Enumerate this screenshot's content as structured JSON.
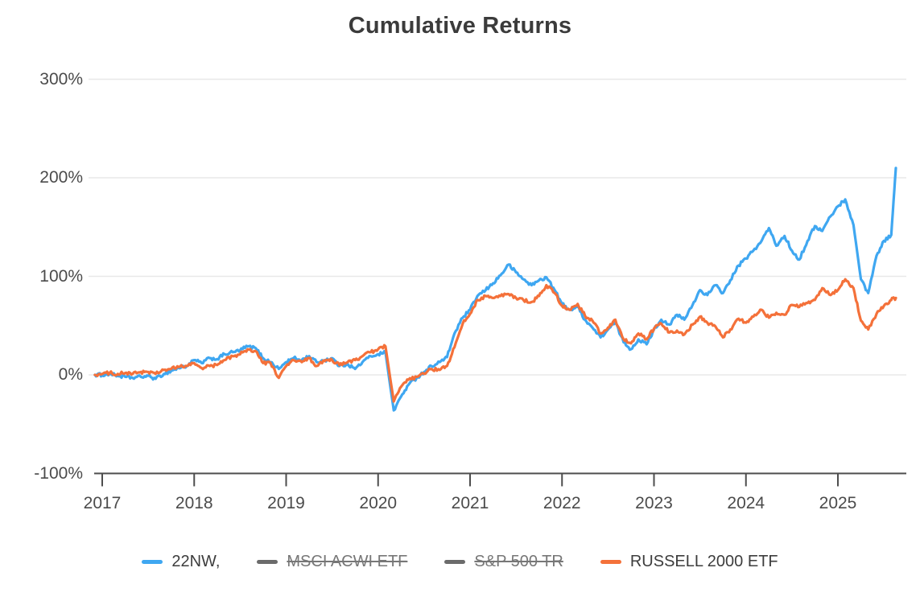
{
  "chart_data": {
    "type": "line",
    "title": "Cumulative Returns",
    "x_axis": {
      "tick_labels": [
        "2017",
        "2018",
        "2019",
        "2020",
        "2021",
        "2022",
        "2023",
        "2024",
        "2025"
      ],
      "tick_values": [
        2017,
        2018,
        2019,
        2020,
        2021,
        2022,
        2023,
        2024,
        2025
      ],
      "range": [
        2016.92,
        2025.7
      ]
    },
    "y_axis": {
      "tick_labels": [
        "300%",
        "200%",
        "100%",
        "0%",
        "-100%"
      ],
      "tick_values": [
        300,
        200,
        100,
        0,
        -100
      ],
      "range": [
        -100,
        300
      ],
      "unit": "%"
    },
    "grid": "horizontal-only",
    "legend": {
      "position": "bottom",
      "items": [
        {
          "label": "22NW,",
          "color": "#3fa7f1",
          "active": true
        },
        {
          "label": "MSCI ACWI ETF",
          "color": "#6b6b6b",
          "active": false
        },
        {
          "label": "S&P 500 TR",
          "color": "#6b6b6b",
          "active": false
        },
        {
          "label": "RUSSELL 2000 ETF",
          "color": "#f4713a",
          "active": true
        }
      ]
    },
    "colors": {
      "series_blue": "#3fa7f1",
      "series_orange": "#f4713a",
      "disabled_legend": "#6b6b6b",
      "gridline": "#e8e8e8",
      "axis": "#4d4d4d",
      "title_text": "#3b3b3b",
      "tick_text": "#4b4b4b"
    },
    "series": [
      {
        "name": "22NW,",
        "color": "#3fa7f1",
        "unit": "%",
        "points": [
          [
            2016.92,
            0
          ],
          [
            2017.0,
            0
          ],
          [
            2017.08,
            1
          ],
          [
            2017.17,
            -1
          ],
          [
            2017.25,
            -2
          ],
          [
            2017.33,
            -3
          ],
          [
            2017.42,
            -2
          ],
          [
            2017.5,
            -1
          ],
          [
            2017.58,
            -4
          ],
          [
            2017.67,
            1
          ],
          [
            2017.75,
            4
          ],
          [
            2017.83,
            7
          ],
          [
            2017.92,
            9
          ],
          [
            2018.0,
            15
          ],
          [
            2018.08,
            12
          ],
          [
            2018.17,
            17
          ],
          [
            2018.25,
            16
          ],
          [
            2018.33,
            21
          ],
          [
            2018.42,
            23
          ],
          [
            2018.5,
            25
          ],
          [
            2018.58,
            29
          ],
          [
            2018.67,
            27
          ],
          [
            2018.75,
            17
          ],
          [
            2018.83,
            13
          ],
          [
            2018.92,
            6
          ],
          [
            2019.0,
            13
          ],
          [
            2019.08,
            17
          ],
          [
            2019.17,
            15
          ],
          [
            2019.25,
            19
          ],
          [
            2019.33,
            13
          ],
          [
            2019.42,
            15
          ],
          [
            2019.5,
            17
          ],
          [
            2019.58,
            9
          ],
          [
            2019.67,
            11
          ],
          [
            2019.75,
            6
          ],
          [
            2019.83,
            13
          ],
          [
            2019.92,
            19
          ],
          [
            2020.0,
            21
          ],
          [
            2020.08,
            23
          ],
          [
            2020.17,
            -36
          ],
          [
            2020.25,
            -22
          ],
          [
            2020.33,
            -10
          ],
          [
            2020.42,
            -3
          ],
          [
            2020.5,
            3
          ],
          [
            2020.58,
            9
          ],
          [
            2020.67,
            13
          ],
          [
            2020.75,
            18
          ],
          [
            2020.83,
            42
          ],
          [
            2020.92,
            58
          ],
          [
            2021.0,
            66
          ],
          [
            2021.08,
            80
          ],
          [
            2021.17,
            86
          ],
          [
            2021.25,
            93
          ],
          [
            2021.33,
            101
          ],
          [
            2021.42,
            112
          ],
          [
            2021.5,
            104
          ],
          [
            2021.58,
            97
          ],
          [
            2021.67,
            91
          ],
          [
            2021.75,
            96
          ],
          [
            2021.83,
            99
          ],
          [
            2021.92,
            86
          ],
          [
            2022.0,
            72
          ],
          [
            2022.08,
            66
          ],
          [
            2022.17,
            69
          ],
          [
            2022.25,
            56
          ],
          [
            2022.33,
            48
          ],
          [
            2022.42,
            38
          ],
          [
            2022.5,
            46
          ],
          [
            2022.58,
            53
          ],
          [
            2022.67,
            33
          ],
          [
            2022.75,
            26
          ],
          [
            2022.83,
            36
          ],
          [
            2022.92,
            31
          ],
          [
            2023.0,
            46
          ],
          [
            2023.08,
            56
          ],
          [
            2023.17,
            51
          ],
          [
            2023.25,
            61
          ],
          [
            2023.33,
            56
          ],
          [
            2023.42,
            71
          ],
          [
            2023.5,
            86
          ],
          [
            2023.58,
            81
          ],
          [
            2023.67,
            91
          ],
          [
            2023.75,
            83
          ],
          [
            2023.83,
            96
          ],
          [
            2023.92,
            111
          ],
          [
            2024.0,
            118
          ],
          [
            2024.08,
            126
          ],
          [
            2024.17,
            136
          ],
          [
            2024.25,
            149
          ],
          [
            2024.33,
            131
          ],
          [
            2024.42,
            141
          ],
          [
            2024.5,
            126
          ],
          [
            2024.58,
            117
          ],
          [
            2024.67,
            136
          ],
          [
            2024.75,
            151
          ],
          [
            2024.83,
            146
          ],
          [
            2024.92,
            161
          ],
          [
            2025.0,
            171
          ],
          [
            2025.08,
            178
          ],
          [
            2025.17,
            152
          ],
          [
            2025.25,
            97
          ],
          [
            2025.33,
            83
          ],
          [
            2025.42,
            121
          ],
          [
            2025.5,
            136
          ],
          [
            2025.58,
            142
          ],
          [
            2025.63,
            210
          ]
        ]
      },
      {
        "name": "RUSSELL 2000 ETF",
        "color": "#f4713a",
        "unit": "%",
        "points": [
          [
            2016.92,
            0
          ],
          [
            2017.0,
            1
          ],
          [
            2017.08,
            2
          ],
          [
            2017.17,
            1
          ],
          [
            2017.25,
            2
          ],
          [
            2017.33,
            1
          ],
          [
            2017.42,
            3
          ],
          [
            2017.5,
            3
          ],
          [
            2017.58,
            1
          ],
          [
            2017.67,
            5
          ],
          [
            2017.75,
            6
          ],
          [
            2017.83,
            8
          ],
          [
            2017.92,
            9
          ],
          [
            2018.0,
            12
          ],
          [
            2018.08,
            7
          ],
          [
            2018.17,
            9
          ],
          [
            2018.25,
            10
          ],
          [
            2018.33,
            15
          ],
          [
            2018.42,
            19
          ],
          [
            2018.5,
            21
          ],
          [
            2018.58,
            26
          ],
          [
            2018.67,
            24
          ],
          [
            2018.75,
            12
          ],
          [
            2018.83,
            12
          ],
          [
            2018.92,
            -3
          ],
          [
            2019.0,
            9
          ],
          [
            2019.08,
            15
          ],
          [
            2019.17,
            13
          ],
          [
            2019.25,
            17
          ],
          [
            2019.33,
            9
          ],
          [
            2019.42,
            14
          ],
          [
            2019.5,
            15
          ],
          [
            2019.58,
            10
          ],
          [
            2019.67,
            13
          ],
          [
            2019.75,
            15
          ],
          [
            2019.83,
            19
          ],
          [
            2019.92,
            23
          ],
          [
            2020.0,
            26
          ],
          [
            2020.08,
            29
          ],
          [
            2020.17,
            -27
          ],
          [
            2020.25,
            -12
          ],
          [
            2020.33,
            -5
          ],
          [
            2020.42,
            -2
          ],
          [
            2020.5,
            1
          ],
          [
            2020.58,
            6
          ],
          [
            2020.67,
            5
          ],
          [
            2020.75,
            9
          ],
          [
            2020.83,
            28
          ],
          [
            2020.92,
            52
          ],
          [
            2021.0,
            62
          ],
          [
            2021.08,
            76
          ],
          [
            2021.17,
            80
          ],
          [
            2021.25,
            78
          ],
          [
            2021.33,
            80
          ],
          [
            2021.42,
            82
          ],
          [
            2021.5,
            78
          ],
          [
            2021.58,
            76
          ],
          [
            2021.67,
            74
          ],
          [
            2021.75,
            80
          ],
          [
            2021.83,
            91
          ],
          [
            2021.92,
            83
          ],
          [
            2022.0,
            70
          ],
          [
            2022.08,
            66
          ],
          [
            2022.17,
            72
          ],
          [
            2022.25,
            60
          ],
          [
            2022.33,
            55
          ],
          [
            2022.42,
            42
          ],
          [
            2022.5,
            48
          ],
          [
            2022.58,
            56
          ],
          [
            2022.67,
            36
          ],
          [
            2022.75,
            32
          ],
          [
            2022.83,
            42
          ],
          [
            2022.92,
            36
          ],
          [
            2023.0,
            47
          ],
          [
            2023.08,
            52
          ],
          [
            2023.17,
            43
          ],
          [
            2023.25,
            45
          ],
          [
            2023.33,
            41
          ],
          [
            2023.42,
            51
          ],
          [
            2023.5,
            59
          ],
          [
            2023.58,
            53
          ],
          [
            2023.67,
            49
          ],
          [
            2023.75,
            38
          ],
          [
            2023.83,
            46
          ],
          [
            2023.92,
            57
          ],
          [
            2024.0,
            53
          ],
          [
            2024.08,
            59
          ],
          [
            2024.17,
            66
          ],
          [
            2024.25,
            58
          ],
          [
            2024.33,
            63
          ],
          [
            2024.42,
            61
          ],
          [
            2024.5,
            71
          ],
          [
            2024.58,
            69
          ],
          [
            2024.67,
            73
          ],
          [
            2024.75,
            76
          ],
          [
            2024.83,
            88
          ],
          [
            2024.92,
            81
          ],
          [
            2025.0,
            86
          ],
          [
            2025.08,
            97
          ],
          [
            2025.17,
            88
          ],
          [
            2025.25,
            55
          ],
          [
            2025.33,
            46
          ],
          [
            2025.42,
            62
          ],
          [
            2025.5,
            70
          ],
          [
            2025.58,
            76
          ],
          [
            2025.63,
            78
          ]
        ]
      }
    ]
  }
}
